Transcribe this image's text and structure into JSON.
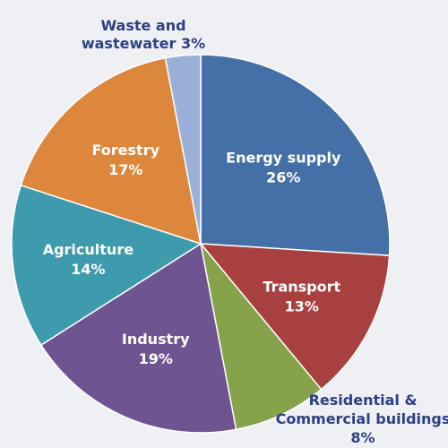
{
  "chart_data": {
    "type": "pie",
    "start_angle_deg": 90,
    "direction": "clockwise",
    "slices": [
      {
        "name": "Energy supply",
        "value": 26,
        "value_label": "26%",
        "color": "#4470a7",
        "label_position": "inside"
      },
      {
        "name": "Transport",
        "value": 13,
        "value_label": "13%",
        "color": "#a8403f",
        "label_position": "inside"
      },
      {
        "name": "Residential & Commercial buildings",
        "name_lines": [
          "Residential &",
          "Commercial buildings"
        ],
        "value": 8,
        "value_label": "8%",
        "color": "#86a24a",
        "label_position": "outside"
      },
      {
        "name": "Industry",
        "value": 19,
        "value_label": "19%",
        "color": "#6e5592",
        "label_position": "inside"
      },
      {
        "name": "Agriculture",
        "value": 14,
        "value_label": "14%",
        "color": "#3e9aad",
        "label_position": "inside"
      },
      {
        "name": "Forestry",
        "value": 17,
        "value_label": "17%",
        "color": "#dd873c",
        "label_position": "inside"
      },
      {
        "name": "Waste and wastewater",
        "name_lines": [
          "Waste and",
          "wastewater 3%"
        ],
        "value": 3,
        "value_label": "3%",
        "color": "#9bb0d8",
        "label_position": "outside"
      }
    ]
  }
}
